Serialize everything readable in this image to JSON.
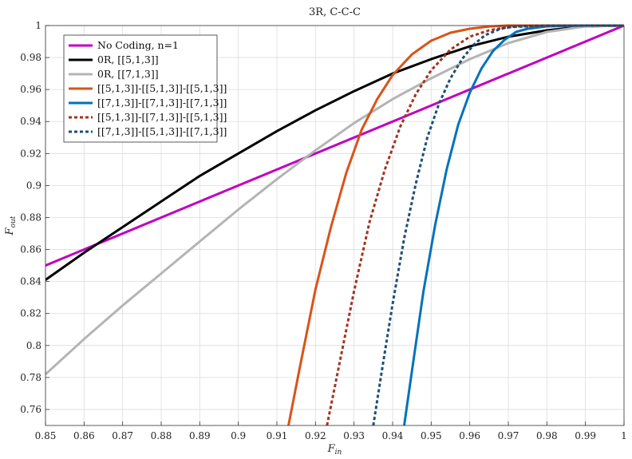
{
  "chart_data": {
    "type": "line",
    "title": "3R, C-C-C",
    "xlabel": "F",
    "xlabel_sub": "in",
    "ylabel": "F",
    "ylabel_sub": "out",
    "xlim": [
      0.85,
      1.0
    ],
    "ylim": [
      0.75,
      1.0
    ],
    "grid": true,
    "legend_position": "top-left",
    "x_ticks": [
      "0.85",
      "0.86",
      "0.87",
      "0.88",
      "0.89",
      "0.9",
      "0.91",
      "0.92",
      "0.93",
      "0.94",
      "0.95",
      "0.96",
      "0.97",
      "0.98",
      "0.99",
      "1"
    ],
    "y_ticks": [
      "0.76",
      "0.78",
      "0.8",
      "0.82",
      "0.84",
      "0.86",
      "0.88",
      "0.9",
      "0.92",
      "0.94",
      "0.96",
      "0.98",
      "1"
    ],
    "series": [
      {
        "name": "No Coding, n=1",
        "color": "#c000c0",
        "style": "solid",
        "x": [
          0.85,
          1.0
        ],
        "y": [
          0.85,
          1.0
        ]
      },
      {
        "name": "0R, [[5,1,3]]",
        "color": "#000000",
        "style": "solid",
        "x": [
          0.85,
          0.86,
          0.87,
          0.88,
          0.89,
          0.9,
          0.91,
          0.92,
          0.93,
          0.94,
          0.95,
          0.96,
          0.97,
          0.98,
          0.99,
          1.0
        ],
        "y": [
          0.841,
          0.858,
          0.874,
          0.89,
          0.906,
          0.92,
          0.934,
          0.947,
          0.959,
          0.97,
          0.979,
          0.987,
          0.993,
          0.997,
          0.9995,
          1.0
        ]
      },
      {
        "name": "0R, [[7,1,3]]",
        "color": "#b4b4b4",
        "style": "solid",
        "x": [
          0.85,
          0.86,
          0.87,
          0.88,
          0.89,
          0.9,
          0.91,
          0.92,
          0.93,
          0.94,
          0.95,
          0.96,
          0.97,
          0.98,
          0.99,
          1.0
        ],
        "y": [
          0.782,
          0.804,
          0.825,
          0.845,
          0.865,
          0.885,
          0.904,
          0.922,
          0.939,
          0.954,
          0.967,
          0.979,
          0.989,
          0.996,
          0.9995,
          1.0
        ]
      },
      {
        "name": "[[5,1,3]]-[[5,1,3]]-[[5,1,3]]",
        "color": "#d95319",
        "style": "solid",
        "x": [
          0.913,
          0.916,
          0.92,
          0.924,
          0.928,
          0.932,
          0.936,
          0.94,
          0.945,
          0.95,
          0.955,
          0.96,
          0.965,
          0.97,
          0.98,
          1.0
        ],
        "y": [
          0.75,
          0.787,
          0.835,
          0.874,
          0.908,
          0.935,
          0.954,
          0.969,
          0.982,
          0.9905,
          0.9955,
          0.998,
          0.9994,
          1.0,
          1.0,
          1.0
        ]
      },
      {
        "name": "[[7,1,3]]-[[7,1,3]]-[[7,1,3]]",
        "color": "#0072bd",
        "style": "solid",
        "x": [
          0.943,
          0.945,
          0.948,
          0.951,
          0.954,
          0.957,
          0.96,
          0.963,
          0.966,
          0.969,
          0.972,
          0.975,
          0.98,
          0.99,
          1.0
        ],
        "y": [
          0.75,
          0.784,
          0.834,
          0.875,
          0.91,
          0.938,
          0.958,
          0.973,
          0.984,
          0.991,
          0.996,
          0.998,
          0.9995,
          1.0,
          1.0
        ]
      },
      {
        "name": "[[5,1,3]]-[[7,1,3]]-[[5,1,3]]",
        "color": "#a2331f",
        "style": "dotted",
        "x": [
          0.923,
          0.926,
          0.93,
          0.934,
          0.938,
          0.942,
          0.946,
          0.95,
          0.955,
          0.96,
          0.965,
          0.97,
          0.98,
          1.0
        ],
        "y": [
          0.75,
          0.786,
          0.834,
          0.877,
          0.91,
          0.937,
          0.957,
          0.972,
          0.985,
          0.993,
          0.997,
          0.999,
          1.0,
          1.0
        ]
      },
      {
        "name": "[[7,1,3]]-[[5,1,3]]-[[7,1,3]]",
        "color": "#1f4e79",
        "style": "dotted",
        "x": [
          0.935,
          0.937,
          0.94,
          0.943,
          0.946,
          0.949,
          0.952,
          0.955,
          0.958,
          0.961,
          0.964,
          0.968,
          0.972,
          0.98,
          1.0
        ],
        "y": [
          0.75,
          0.781,
          0.826,
          0.867,
          0.901,
          0.93,
          0.951,
          0.967,
          0.979,
          0.988,
          0.994,
          0.998,
          0.9995,
          1.0,
          1.0
        ]
      }
    ]
  }
}
